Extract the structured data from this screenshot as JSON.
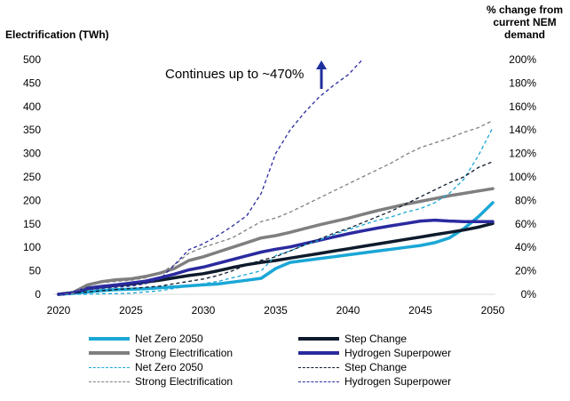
{
  "axes": {
    "left_title": "Electrification (TWh)",
    "right_title_lines": [
      "% change from",
      "current NEM",
      "demand"
    ]
  },
  "annotation": {
    "text": "Continues up to ~470%"
  },
  "colors": {
    "net_zero": "#1aa7d6",
    "step_change": "#0e1b2c",
    "strong_electrification": "#7f7f7f",
    "hydrogen_superpower": "#2a2aa0",
    "arrow": "#1f2f9e"
  },
  "chart_data": {
    "type": "line",
    "title": "",
    "xlabel": "",
    "ylabel": "Electrification (TWh)",
    "y2label": "% change from current NEM demand",
    "xlim": [
      2020,
      2050
    ],
    "ylim": [
      0,
      500
    ],
    "y2lim": [
      0,
      200
    ],
    "x_ticks": [
      "2020",
      "2025",
      "2030",
      "2035",
      "2040",
      "2045",
      "2050"
    ],
    "y_ticks": [
      "0",
      "50",
      "100",
      "150",
      "200",
      "250",
      "300",
      "350",
      "400",
      "450",
      "500"
    ],
    "y2_ticks": [
      "0%",
      "20%",
      "40%",
      "60%",
      "80%",
      "100%",
      "120%",
      "140%",
      "160%",
      "180%",
      "200%"
    ],
    "grid": false,
    "legend_position": "bottom",
    "series": [
      {
        "name": "Net Zero 2050",
        "axis": "left",
        "style": "solid",
        "color_key": "net_zero",
        "x": [
          2020,
          2021,
          2022,
          2023,
          2024,
          2025,
          2026,
          2027,
          2028,
          2029,
          2030,
          2031,
          2032,
          2033,
          2034,
          2035,
          2036,
          2037,
          2038,
          2039,
          2040,
          2041,
          2042,
          2043,
          2044,
          2045,
          2046,
          2047,
          2048,
          2049,
          2050
        ],
        "y": [
          0,
          2,
          5,
          8,
          10,
          11,
          12,
          14,
          16,
          18,
          20,
          22,
          26,
          30,
          34,
          55,
          68,
          72,
          76,
          80,
          84,
          88,
          92,
          96,
          100,
          104,
          110,
          120,
          140,
          165,
          195
        ]
      },
      {
        "name": "Strong Electrification",
        "axis": "left",
        "style": "solid",
        "color_key": "strong_electrification",
        "x": [
          2020,
          2021,
          2022,
          2023,
          2024,
          2025,
          2026,
          2027,
          2028,
          2029,
          2030,
          2031,
          2032,
          2033,
          2034,
          2035,
          2036,
          2037,
          2038,
          2039,
          2040,
          2041,
          2042,
          2043,
          2044,
          2045,
          2046,
          2047,
          2048,
          2049,
          2050
        ],
        "y": [
          0,
          4,
          20,
          27,
          31,
          33,
          38,
          45,
          55,
          72,
          80,
          90,
          100,
          110,
          120,
          125,
          132,
          140,
          148,
          155,
          162,
          170,
          178,
          185,
          192,
          198,
          204,
          210,
          215,
          220,
          225
        ]
      },
      {
        "name": "Step Change",
        "axis": "left",
        "style": "solid",
        "color_key": "step_change",
        "x": [
          2020,
          2021,
          2022,
          2023,
          2024,
          2025,
          2026,
          2027,
          2028,
          2029,
          2030,
          2031,
          2032,
          2033,
          2034,
          2035,
          2036,
          2037,
          2038,
          2039,
          2040,
          2041,
          2042,
          2043,
          2044,
          2045,
          2046,
          2047,
          2048,
          2049,
          2050
        ],
        "y": [
          0,
          3,
          12,
          16,
          19,
          22,
          26,
          30,
          35,
          40,
          44,
          50,
          57,
          63,
          68,
          72,
          77,
          82,
          87,
          92,
          97,
          102,
          107,
          112,
          117,
          122,
          127,
          132,
          137,
          143,
          151
        ]
      },
      {
        "name": "Hydrogen Superpower",
        "axis": "left",
        "style": "solid",
        "color_key": "hydrogen_superpower",
        "x": [
          2020,
          2021,
          2022,
          2023,
          2024,
          2025,
          2026,
          2027,
          2028,
          2029,
          2030,
          2031,
          2032,
          2033,
          2034,
          2035,
          2036,
          2037,
          2038,
          2039,
          2040,
          2041,
          2042,
          2043,
          2044,
          2045,
          2046,
          2047,
          2048,
          2049,
          2050
        ],
        "y": [
          0,
          3,
          13,
          17,
          20,
          24,
          28,
          35,
          43,
          52,
          58,
          66,
          74,
          82,
          90,
          96,
          101,
          108,
          115,
          122,
          129,
          135,
          141,
          146,
          151,
          156,
          158,
          156,
          155,
          155,
          155
        ]
      },
      {
        "name": "Net Zero 2050",
        "axis": "right",
        "style": "dashed",
        "color_key": "net_zero",
        "x": [
          2020,
          2021,
          2022,
          2023,
          2024,
          2025,
          2026,
          2027,
          2028,
          2029,
          2030,
          2031,
          2032,
          2033,
          2034,
          2035,
          2036,
          2037,
          2038,
          2039,
          2040,
          2041,
          2042,
          2043,
          2044,
          2045,
          2046,
          2047,
          2048,
          2049,
          2050
        ],
        "y": [
          0,
          0,
          0,
          0.5,
          0.5,
          1,
          2,
          3,
          5,
          7,
          9,
          11,
          14,
          17,
          20,
          33,
          37,
          42,
          46,
          51,
          55,
          59,
          63,
          66,
          70,
          73,
          78,
          86,
          98,
          118,
          142
        ]
      },
      {
        "name": "Step Change",
        "axis": "right",
        "style": "dashed",
        "color_key": "step_change",
        "x": [
          2020,
          2021,
          2022,
          2023,
          2024,
          2025,
          2026,
          2027,
          2028,
          2029,
          2030,
          2031,
          2032,
          2033,
          2034,
          2035,
          2036,
          2037,
          2038,
          2039,
          2040,
          2041,
          2042,
          2043,
          2044,
          2045,
          2046,
          2047,
          2048,
          2049,
          2050
        ],
        "y": [
          0,
          1,
          2,
          3,
          4,
          5,
          6,
          7,
          9,
          11,
          13,
          16,
          20,
          25,
          29,
          32,
          37,
          42,
          47,
          52,
          56,
          61,
          66,
          71,
          77,
          83,
          89,
          95,
          100,
          108,
          113
        ]
      },
      {
        "name": "Strong Electrification",
        "axis": "right",
        "style": "dashed",
        "color_key": "strong_electrification",
        "x": [
          2020,
          2021,
          2022,
          2023,
          2024,
          2025,
          2026,
          2027,
          2028,
          2029,
          2030,
          2031,
          2032,
          2033,
          2034,
          2035,
          2036,
          2037,
          2038,
          2039,
          2040,
          2041,
          2042,
          2043,
          2044,
          2045,
          2046,
          2047,
          2048,
          2049,
          2050
        ],
        "y": [
          0,
          1,
          7,
          10,
          11,
          12,
          14,
          18,
          25,
          35,
          40,
          44,
          48,
          55,
          62,
          65,
          70,
          76,
          82,
          88,
          94,
          100,
          106,
          112,
          119,
          125,
          129,
          133,
          138,
          142,
          148
        ]
      },
      {
        "name": "Hydrogen Superpower",
        "axis": "right",
        "style": "dashed",
        "color_key": "hydrogen_superpower",
        "x": [
          2020,
          2021,
          2022,
          2023,
          2024,
          2025,
          2026,
          2027,
          2028,
          2029,
          2030,
          2031,
          2032,
          2033,
          2034,
          2035,
          2036,
          2037,
          2038,
          2039,
          2040,
          2041
        ],
        "y": [
          0,
          2,
          4,
          5,
          6,
          7,
          9,
          13,
          25,
          38,
          43,
          50,
          58,
          67,
          86,
          120,
          140,
          155,
          168,
          178,
          187,
          200
        ]
      }
    ]
  },
  "legend": {
    "items": [
      {
        "label": "Net Zero 2050",
        "color_key": "net_zero",
        "style": "solid"
      },
      {
        "label": "Step Change",
        "color_key": "step_change",
        "style": "solid"
      },
      {
        "label": "Strong Electrification",
        "color_key": "strong_electrification",
        "style": "solid"
      },
      {
        "label": "Hydrogen Superpower",
        "color_key": "hydrogen_superpower",
        "style": "solid"
      },
      {
        "label": "Net Zero 2050",
        "color_key": "net_zero",
        "style": "dashed"
      },
      {
        "label": "Step Change",
        "color_key": "step_change",
        "style": "dashed"
      },
      {
        "label": "Strong Electrification",
        "color_key": "strong_electrification",
        "style": "dashed"
      },
      {
        "label": "Hydrogen Superpower",
        "color_key": "hydrogen_superpower",
        "style": "dashed"
      }
    ]
  }
}
